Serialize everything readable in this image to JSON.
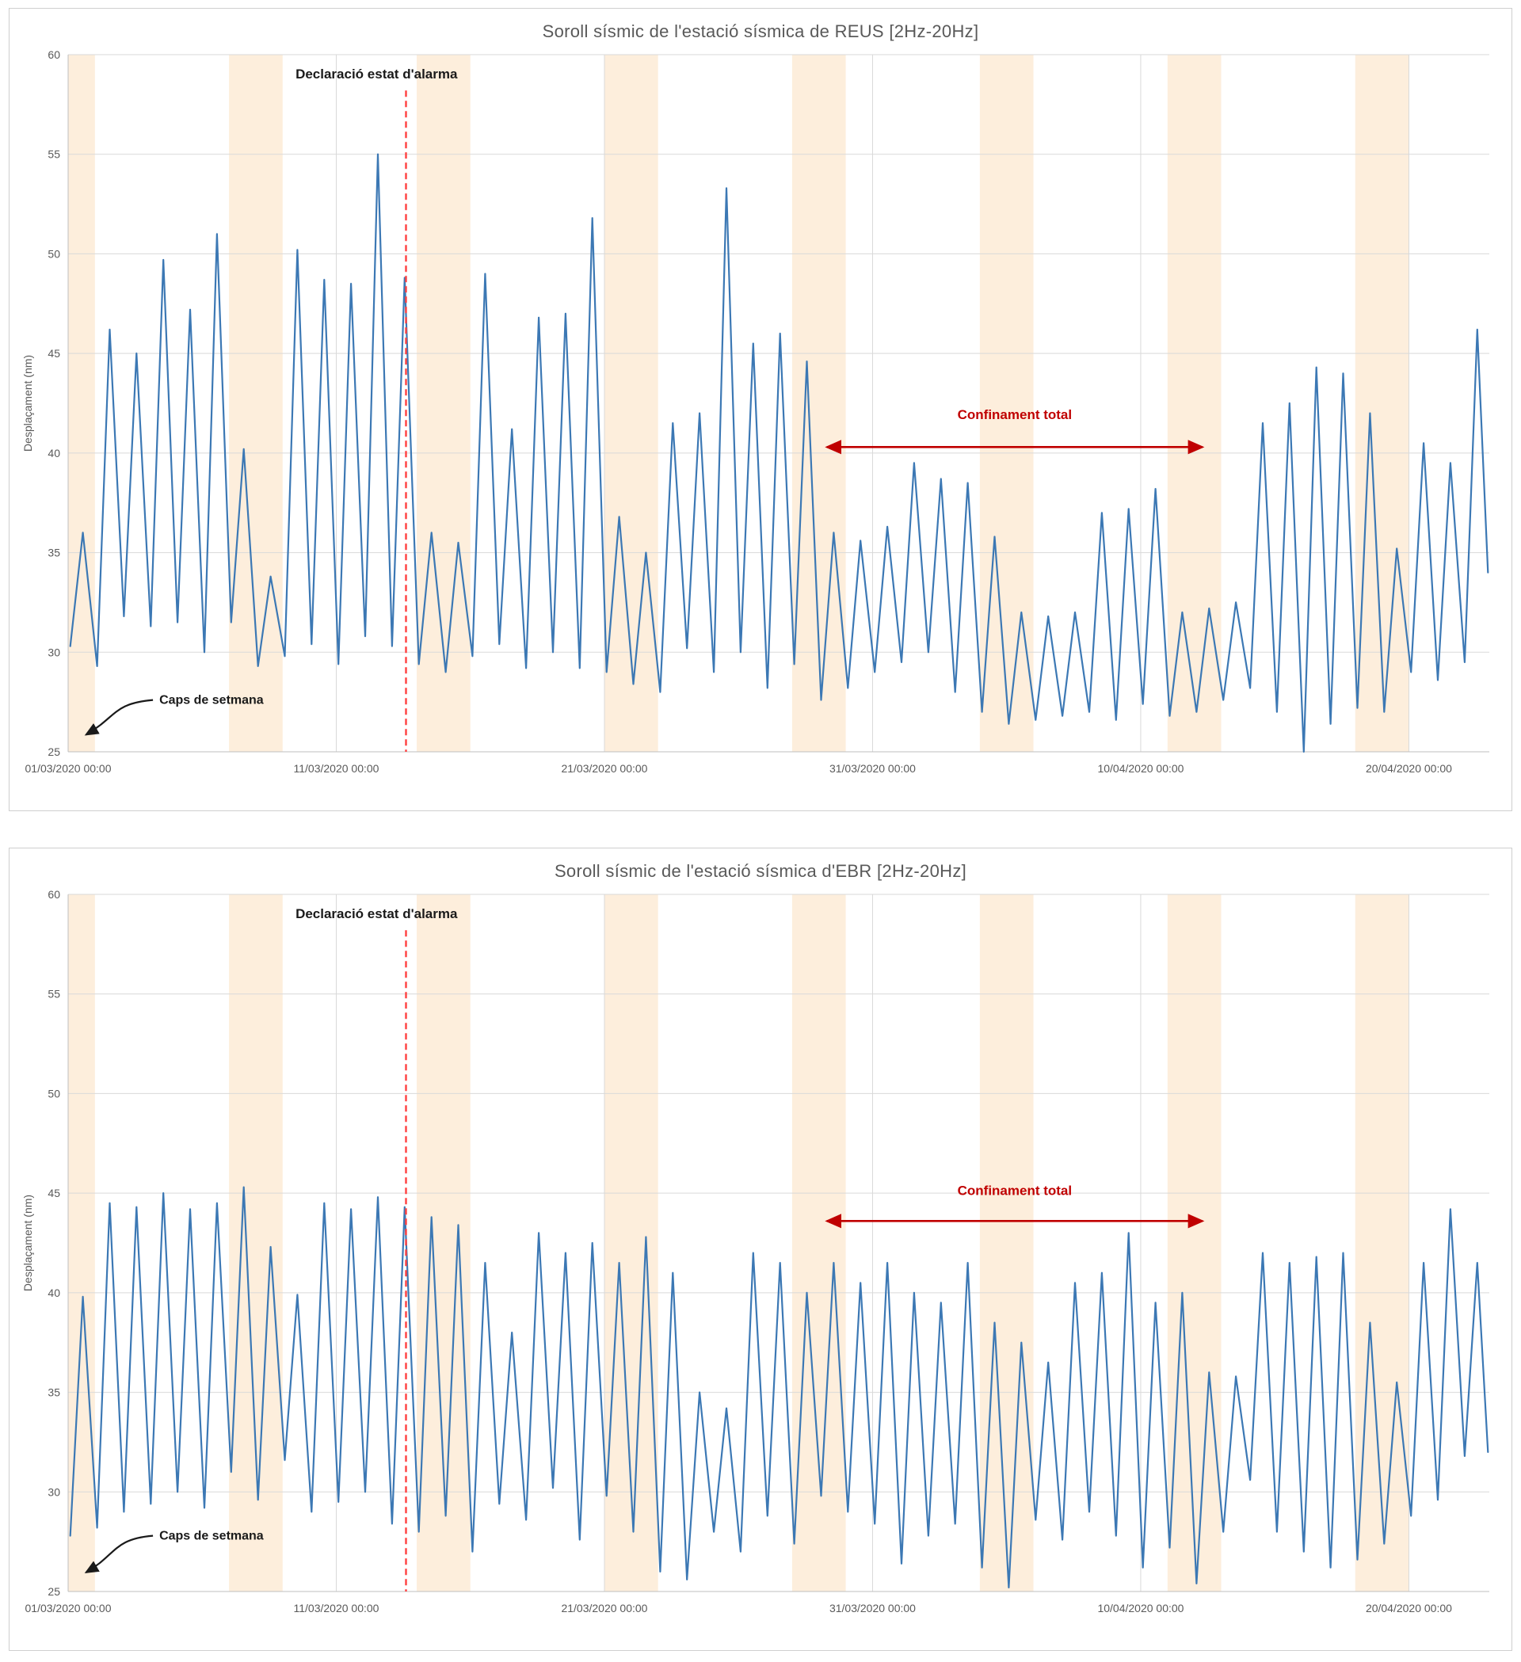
{
  "chart_data": [
    {
      "type": "line",
      "title": "Soroll sísmic de l'estació sísmica de REUS [2Hz-20Hz]",
      "ylabel": "Desplaçament (nm)",
      "ylim": [
        25,
        60
      ],
      "yticks": [
        25,
        30,
        35,
        40,
        45,
        50,
        55,
        60
      ],
      "xlim_days": [
        0,
        53
      ],
      "xtick_days": [
        0,
        10,
        20,
        30,
        40,
        50
      ],
      "xtick_labels": [
        "01/03/2020 00:00",
        "11/03/2020 00:00",
        "21/03/2020 00:00",
        "31/03/2020 00:00",
        "10/04/2020 00:00",
        "20/04/2020 00:00"
      ],
      "grid": true,
      "legend": "none",
      "series_name": "Soroll sísmic REUS",
      "daily_peaks": [
        36.0,
        46.2,
        45.0,
        49.7,
        47.2,
        51.0,
        40.2,
        33.8,
        50.2,
        48.7,
        48.5,
        55.0,
        48.8,
        36.0,
        35.5,
        49.0,
        41.2,
        46.8,
        47.0,
        51.8,
        36.8,
        35.0,
        41.5,
        42.0,
        53.3,
        45.5,
        46.0,
        44.6,
        36.0,
        35.6,
        36.3,
        39.5,
        38.7,
        38.5,
        35.8,
        32.0,
        31.8,
        32.0,
        37.0,
        37.2,
        38.2,
        32.0,
        32.2,
        32.5,
        41.5,
        42.5,
        44.3,
        44.0,
        42.0,
        35.2,
        40.5,
        39.5,
        46.2
      ],
      "daily_troughs": [
        30.3,
        29.3,
        31.8,
        31.3,
        31.5,
        30.0,
        31.5,
        29.3,
        29.8,
        30.4,
        29.4,
        30.8,
        30.3,
        29.4,
        29.0,
        29.8,
        30.4,
        29.2,
        30.0,
        29.2,
        29.0,
        28.4,
        28.0,
        30.2,
        29.0,
        30.0,
        28.2,
        29.4,
        27.6,
        28.2,
        29.0,
        29.5,
        30.0,
        28.0,
        27.0,
        26.4,
        26.6,
        26.8,
        27.0,
        26.6,
        27.4,
        26.8,
        27.0,
        27.6,
        28.2,
        27.0,
        24.9,
        26.4,
        27.2,
        27.0,
        29.0,
        28.6,
        29.5
      ],
      "end_value": 34.0,
      "weekend_bands_days": [
        [
          0,
          1
        ],
        [
          6,
          8
        ],
        [
          13,
          15
        ],
        [
          20,
          22
        ],
        [
          27,
          29
        ],
        [
          34,
          36
        ],
        [
          41,
          43
        ],
        [
          48,
          50
        ]
      ],
      "alarm_line_day": 12.6,
      "alarm_line_top_value": 58.2,
      "annotations": {
        "alarm": {
          "text": "Declaració estat d'alarma",
          "day": 11.5,
          "value": 58.8
        },
        "weekend": {
          "text": "Caps de setmana",
          "day": 3.4,
          "value": 27.4,
          "arrow_to_day": 0.55,
          "arrow_to_value": 25.7
        },
        "confinement": {
          "text": "Confinament total",
          "day": 35.3,
          "value": 41.7
        }
      },
      "confinement_arrow": {
        "from_day": 28.3,
        "to_day": 42.3,
        "value": 40.3
      },
      "colors": {
        "line": "#3c78b4",
        "band": "#fdeedc",
        "grid": "#d9d9d9",
        "axis": "#bfbfbf",
        "axis_text": "#595959",
        "alarm_line": "#ff4040",
        "confinement": "#c00000",
        "annotation_text": "#1a1a1a"
      }
    },
    {
      "type": "line",
      "title": "Soroll sísmic de l'estació sísmica d'EBR [2Hz-20Hz]",
      "ylabel": "Desplaçament (nm)",
      "ylim": [
        25,
        60
      ],
      "yticks": [
        25,
        30,
        35,
        40,
        45,
        50,
        55,
        60
      ],
      "xlim_days": [
        0,
        53
      ],
      "xtick_days": [
        0,
        10,
        20,
        30,
        40,
        50
      ],
      "xtick_labels": [
        "01/03/2020 00:00",
        "11/03/2020 00:00",
        "21/03/2020 00:00",
        "31/03/2020 00:00",
        "10/04/2020 00:00",
        "20/04/2020 00:00"
      ],
      "grid": true,
      "legend": "none",
      "series_name": "Soroll sísmic EBR",
      "daily_peaks": [
        39.8,
        44.5,
        44.3,
        45.0,
        44.2,
        44.5,
        45.3,
        42.3,
        39.9,
        44.5,
        44.2,
        44.8,
        44.3,
        43.8,
        43.4,
        41.5,
        38.0,
        43.0,
        42.0,
        42.5,
        41.5,
        42.8,
        41.0,
        35.0,
        34.2,
        42.0,
        41.5,
        40.0,
        41.5,
        40.5,
        41.5,
        40.0,
        39.5,
        41.5,
        38.5,
        37.5,
        36.5,
        40.5,
        41.0,
        43.0,
        39.5,
        40.0,
        36.0,
        35.8,
        42.0,
        41.5,
        41.8,
        42.0,
        38.5,
        35.5,
        41.5,
        44.2,
        41.5
      ],
      "daily_troughs": [
        27.8,
        28.2,
        29.0,
        29.4,
        30.0,
        29.2,
        31.0,
        29.6,
        31.6,
        29.0,
        29.5,
        30.0,
        28.4,
        28.0,
        28.8,
        27.0,
        29.4,
        28.6,
        30.2,
        27.6,
        29.8,
        28.0,
        26.0,
        25.6,
        28.0,
        27.0,
        28.8,
        27.4,
        29.8,
        29.0,
        28.4,
        26.4,
        27.8,
        28.4,
        26.2,
        25.2,
        28.6,
        27.6,
        29.0,
        27.8,
        26.2,
        27.2,
        25.4,
        28.0,
        30.6,
        28.0,
        27.0,
        26.2,
        26.6,
        27.4,
        28.8,
        29.6,
        31.8
      ],
      "end_value": 32.0,
      "weekend_bands_days": [
        [
          0,
          1
        ],
        [
          6,
          8
        ],
        [
          13,
          15
        ],
        [
          20,
          22
        ],
        [
          27,
          29
        ],
        [
          34,
          36
        ],
        [
          41,
          43
        ],
        [
          48,
          50
        ]
      ],
      "alarm_line_day": 12.6,
      "alarm_line_top_value": 58.2,
      "annotations": {
        "alarm": {
          "text": "Declaració estat d'alarma",
          "day": 11.5,
          "value": 58.8
        },
        "weekend": {
          "text": "Caps de setmana",
          "day": 3.4,
          "value": 27.6,
          "arrow_to_day": 0.55,
          "arrow_to_value": 25.8
        },
        "confinement": {
          "text": "Confinament total",
          "day": 35.3,
          "value": 44.9
        }
      },
      "confinement_arrow": {
        "from_day": 28.3,
        "to_day": 42.3,
        "value": 43.6
      },
      "colors": {
        "line": "#3c78b4",
        "band": "#fdeedc",
        "grid": "#d9d9d9",
        "axis": "#bfbfbf",
        "axis_text": "#595959",
        "alarm_line": "#ff4040",
        "confinement": "#c00000",
        "annotation_text": "#1a1a1a"
      }
    }
  ]
}
